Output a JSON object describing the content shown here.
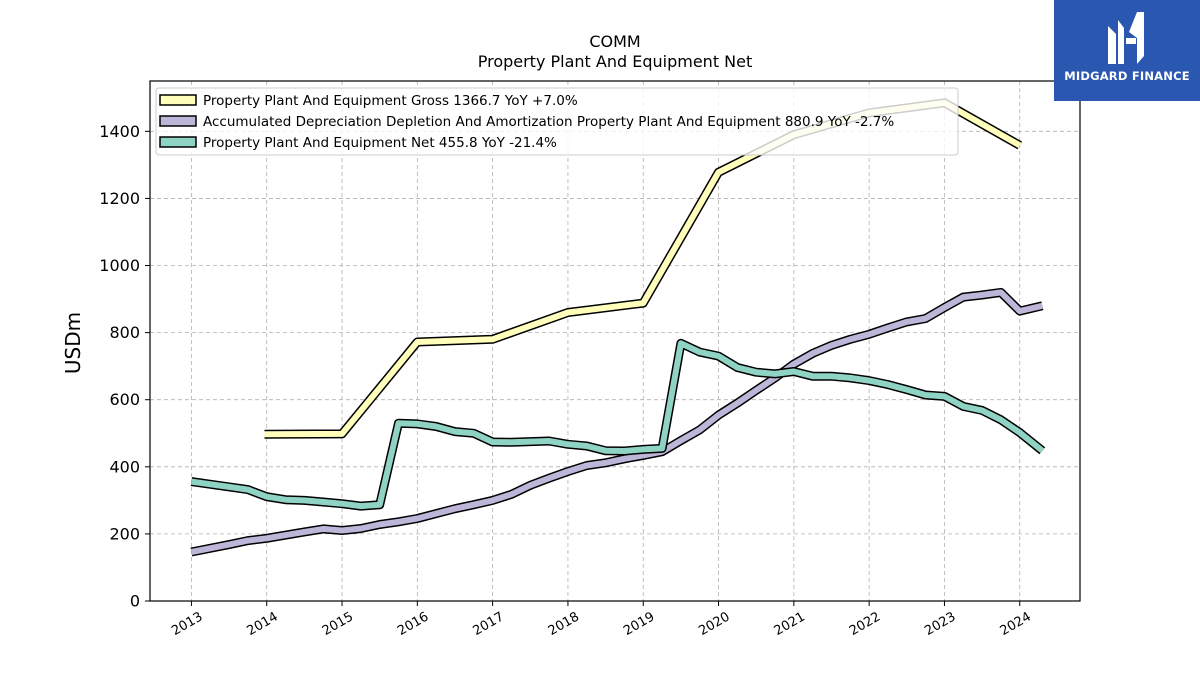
{
  "brand": {
    "name": "MIDGARD FINANCE",
    "logo_icon": "midgard-mh-monogram",
    "bg_color": "#2a57b0"
  },
  "chart_data": {
    "type": "line",
    "title": "COMM",
    "subtitle": "Property Plant And Equipment Net",
    "xlabel": "",
    "ylabel": "USDm",
    "xlim": [
      2012.45,
      2024.8
    ],
    "ylim": [
      0,
      1550
    ],
    "yticks": [
      0,
      200,
      400,
      600,
      800,
      1000,
      1200,
      1400
    ],
    "xticks": [
      "2013",
      "2014",
      "2015",
      "2016",
      "2017",
      "2018",
      "2019",
      "2020",
      "2021",
      "2022",
      "2023",
      "2024"
    ],
    "grid": true,
    "legend_position": "top-left",
    "series": [
      {
        "name": "Property Plant And Equipment Gross",
        "legend": "Property Plant And Equipment Gross  1366.7 YoY +7.0%",
        "color": "#ffffbb",
        "points": [
          [
            2013.97,
            497
          ],
          [
            2015.0,
            498
          ],
          [
            2016.0,
            772
          ],
          [
            2017.0,
            780
          ],
          [
            2018.0,
            860
          ],
          [
            2019.0,
            888
          ],
          [
            2020.0,
            1278
          ],
          [
            2021.0,
            1390
          ],
          [
            2022.0,
            1455
          ],
          [
            2023.0,
            1485
          ],
          [
            2024.0,
            1358
          ]
        ]
      },
      {
        "name": "Accumulated Depreciation Depletion And Amortization Property Plant And Equipment",
        "legend": "Accumulated Depreciation Depletion And Amortization Property Plant And Equipment  880.9 YoY -2.7%",
        "color": "#beb6d8",
        "points": [
          [
            2013.0,
            146
          ],
          [
            2013.5,
            168
          ],
          [
            2013.75,
            180
          ],
          [
            2014.0,
            187
          ],
          [
            2014.5,
            206
          ],
          [
            2014.75,
            215
          ],
          [
            2015.0,
            210
          ],
          [
            2015.25,
            216
          ],
          [
            2015.5,
            228
          ],
          [
            2015.75,
            236
          ],
          [
            2016.0,
            246
          ],
          [
            2016.5,
            275
          ],
          [
            2016.75,
            287
          ],
          [
            2017.0,
            300
          ],
          [
            2017.25,
            318
          ],
          [
            2017.5,
            345
          ],
          [
            2017.75,
            366
          ],
          [
            2018.0,
            386
          ],
          [
            2018.25,
            404
          ],
          [
            2018.5,
            412
          ],
          [
            2018.75,
            424
          ],
          [
            2019.0,
            434
          ],
          [
            2019.25,
            445
          ],
          [
            2019.5,
            478
          ],
          [
            2019.75,
            510
          ],
          [
            2020.0,
            554
          ],
          [
            2020.25,
            590
          ],
          [
            2020.5,
            628
          ],
          [
            2020.75,
            665
          ],
          [
            2021.0,
            706
          ],
          [
            2021.25,
            738
          ],
          [
            2021.5,
            762
          ],
          [
            2021.75,
            780
          ],
          [
            2022.0,
            795
          ],
          [
            2022.25,
            814
          ],
          [
            2022.5,
            832
          ],
          [
            2022.75,
            842
          ],
          [
            2023.0,
            875
          ],
          [
            2023.25,
            906
          ],
          [
            2023.5,
            912
          ],
          [
            2023.75,
            920
          ],
          [
            2024.0,
            864
          ],
          [
            2024.3,
            880
          ]
        ]
      },
      {
        "name": "Property Plant And Equipment Net",
        "legend": "Property Plant And Equipment Net  455.8 YoY -21.4%",
        "color": "#8fd3c4",
        "points": [
          [
            2013.0,
            356
          ],
          [
            2013.5,
            340
          ],
          [
            2013.75,
            332
          ],
          [
            2014.0,
            311
          ],
          [
            2014.25,
            302
          ],
          [
            2014.5,
            300
          ],
          [
            2014.75,
            295
          ],
          [
            2015.0,
            290
          ],
          [
            2015.25,
            283
          ],
          [
            2015.5,
            287
          ],
          [
            2015.75,
            530
          ],
          [
            2016.0,
            528
          ],
          [
            2016.25,
            520
          ],
          [
            2016.5,
            505
          ],
          [
            2016.75,
            500
          ],
          [
            2017.0,
            474
          ],
          [
            2017.25,
            473
          ],
          [
            2017.5,
            475
          ],
          [
            2017.75,
            477
          ],
          [
            2018.0,
            467
          ],
          [
            2018.25,
            462
          ],
          [
            2018.5,
            448
          ],
          [
            2018.75,
            447
          ],
          [
            2019.0,
            452
          ],
          [
            2019.25,
            455
          ],
          [
            2019.5,
            768
          ],
          [
            2019.75,
            742
          ],
          [
            2020.0,
            730
          ],
          [
            2020.25,
            696
          ],
          [
            2020.5,
            682
          ],
          [
            2020.75,
            677
          ],
          [
            2021.0,
            684
          ],
          [
            2021.25,
            670
          ],
          [
            2021.5,
            670
          ],
          [
            2021.75,
            665
          ],
          [
            2022.0,
            657
          ],
          [
            2022.25,
            645
          ],
          [
            2022.5,
            630
          ],
          [
            2022.75,
            614
          ],
          [
            2023.0,
            610
          ],
          [
            2023.25,
            580
          ],
          [
            2023.5,
            568
          ],
          [
            2023.75,
            540
          ],
          [
            2024.0,
            502
          ],
          [
            2024.3,
            448
          ]
        ]
      }
    ]
  }
}
